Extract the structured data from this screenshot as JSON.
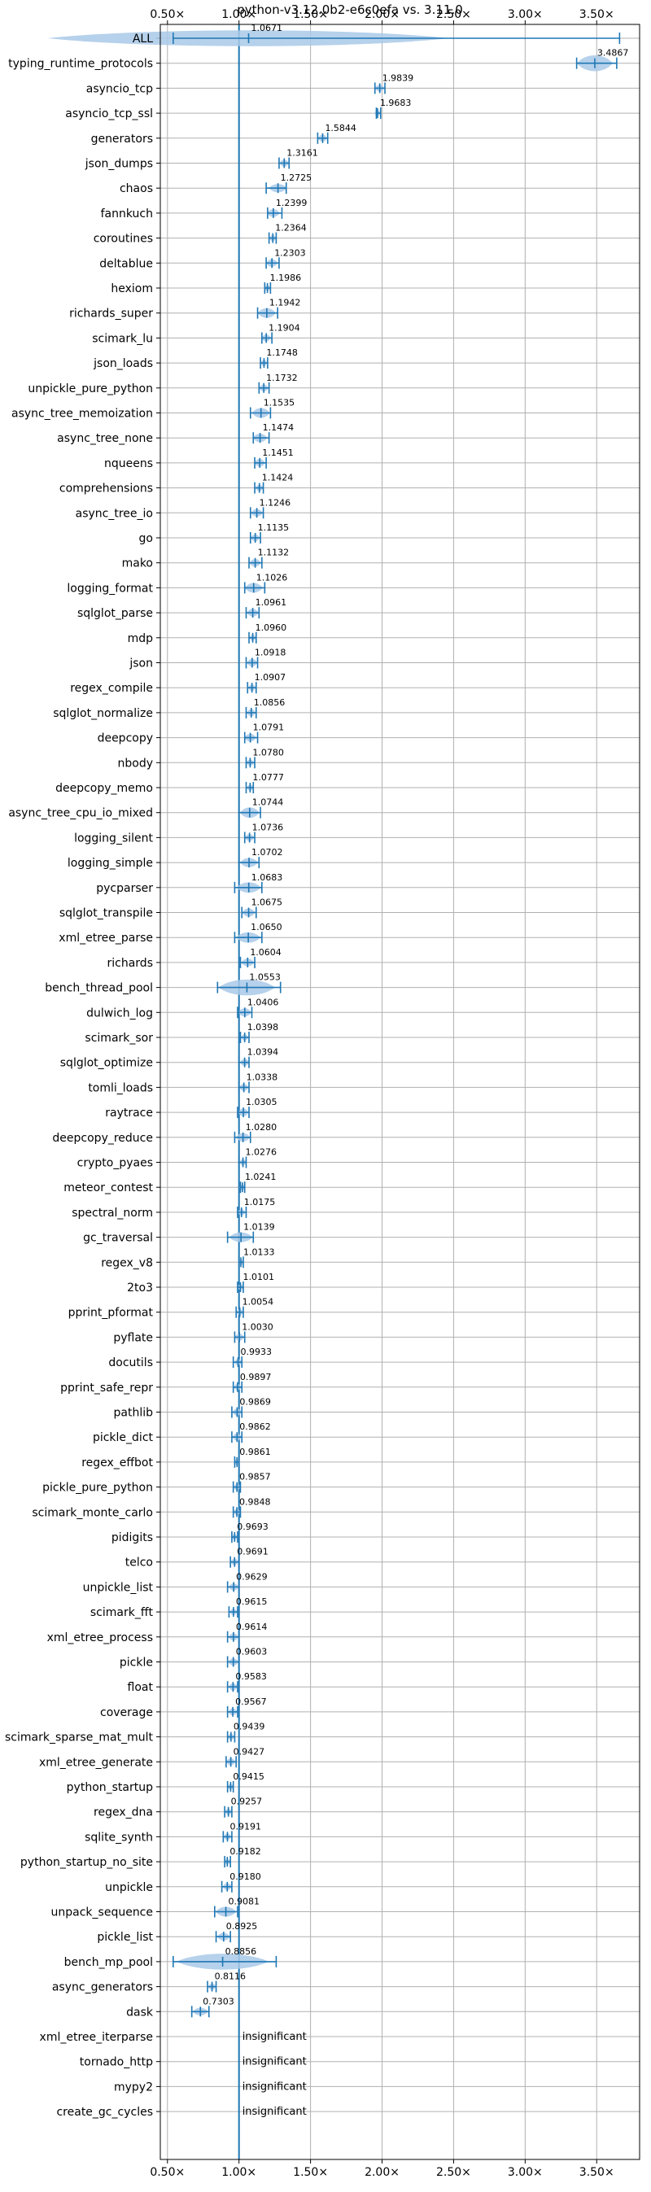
{
  "chart_data": {
    "type": "violin",
    "title": "python-v3.12.0b2-e6c0efa vs. 3.11.0",
    "xlabel": "",
    "ylabel": "",
    "xlim": [
      0.45,
      3.8
    ],
    "x_ticks": [
      0.5,
      1.0,
      1.5,
      2.0,
      2.5,
      3.0,
      3.5
    ],
    "x_tick_labels": [
      "0.50×",
      "1.00×",
      "1.50×",
      "2.00×",
      "2.50×",
      "3.00×",
      "3.50×"
    ],
    "reference_line": 1.0,
    "grid": true,
    "insignificant_label": "insignificant",
    "colors": {
      "accent": "#1f77b4",
      "violin": "#a9c9e8",
      "grid": "#b0b0b0"
    },
    "benchmarks": [
      {
        "name": "ALL",
        "value": 1.0671,
        "value_label": "1.0671",
        "low": 0.54,
        "high": 3.66,
        "spread": 0.34
      },
      {
        "name": "typing_runtime_protocols",
        "value": 3.4867,
        "value_label": "3.4867",
        "low": 3.36,
        "high": 3.64,
        "spread": 0.24
      },
      {
        "name": "asyncio_tcp",
        "value": 1.9839,
        "value_label": "1.9839",
        "low": 1.95,
        "high": 2.02,
        "spread": 0.05
      },
      {
        "name": "asyncio_tcp_ssl",
        "value": 1.9683,
        "value_label": "1.9683",
        "low": 1.96,
        "high": 1.99,
        "spread": 0.03
      },
      {
        "name": "generators",
        "value": 1.5844,
        "value_label": "1.5844",
        "low": 1.55,
        "high": 1.62,
        "spread": 0.05
      },
      {
        "name": "json_dumps",
        "value": 1.3161,
        "value_label": "1.3161",
        "low": 1.28,
        "high": 1.35,
        "spread": 0.05
      },
      {
        "name": "chaos",
        "value": 1.2725,
        "value_label": "1.2725",
        "low": 1.19,
        "high": 1.33,
        "spread": 0.07
      },
      {
        "name": "fannkuch",
        "value": 1.2399,
        "value_label": "1.2399",
        "low": 1.2,
        "high": 1.3,
        "spread": 0.06
      },
      {
        "name": "coroutines",
        "value": 1.2364,
        "value_label": "1.2364",
        "low": 1.21,
        "high": 1.26,
        "spread": 0.04
      },
      {
        "name": "deltablue",
        "value": 1.2303,
        "value_label": "1.2303",
        "low": 1.19,
        "high": 1.28,
        "spread": 0.06
      },
      {
        "name": "hexiom",
        "value": 1.1986,
        "value_label": "1.1986",
        "low": 1.18,
        "high": 1.22,
        "spread": 0.03
      },
      {
        "name": "richards_super",
        "value": 1.1942,
        "value_label": "1.1942",
        "low": 1.13,
        "high": 1.27,
        "spread": 0.09
      },
      {
        "name": "scimark_lu",
        "value": 1.1904,
        "value_label": "1.1904",
        "low": 1.16,
        "high": 1.23,
        "spread": 0.05
      },
      {
        "name": "json_loads",
        "value": 1.1748,
        "value_label": "1.1748",
        "low": 1.15,
        "high": 1.2,
        "spread": 0.04
      },
      {
        "name": "unpickle_pure_python",
        "value": 1.1732,
        "value_label": "1.1732",
        "low": 1.14,
        "high": 1.21,
        "spread": 0.05
      },
      {
        "name": "async_tree_memoization",
        "value": 1.1535,
        "value_label": "1.1535",
        "low": 1.08,
        "high": 1.22,
        "spread": 0.09
      },
      {
        "name": "async_tree_none",
        "value": 1.1474,
        "value_label": "1.1474",
        "low": 1.1,
        "high": 1.21,
        "spread": 0.07
      },
      {
        "name": "nqueens",
        "value": 1.1451,
        "value_label": "1.1451",
        "low": 1.11,
        "high": 1.19,
        "spread": 0.06
      },
      {
        "name": "comprehensions",
        "value": 1.1424,
        "value_label": "1.1424",
        "low": 1.11,
        "high": 1.17,
        "spread": 0.04
      },
      {
        "name": "async_tree_io",
        "value": 1.1246,
        "value_label": "1.1246",
        "low": 1.08,
        "high": 1.17,
        "spread": 0.06
      },
      {
        "name": "go",
        "value": 1.1135,
        "value_label": "1.1135",
        "low": 1.08,
        "high": 1.15,
        "spread": 0.05
      },
      {
        "name": "mako",
        "value": 1.1132,
        "value_label": "1.1132",
        "low": 1.07,
        "high": 1.16,
        "spread": 0.06
      },
      {
        "name": "logging_format",
        "value": 1.1026,
        "value_label": "1.1026",
        "low": 1.04,
        "high": 1.18,
        "spread": 0.09
      },
      {
        "name": "sqlglot_parse",
        "value": 1.0961,
        "value_label": "1.0961",
        "low": 1.05,
        "high": 1.14,
        "spread": 0.06
      },
      {
        "name": "mdp",
        "value": 1.096,
        "value_label": "1.0960",
        "low": 1.07,
        "high": 1.12,
        "spread": 0.04
      },
      {
        "name": "json",
        "value": 1.0918,
        "value_label": "1.0918",
        "low": 1.05,
        "high": 1.13,
        "spread": 0.06
      },
      {
        "name": "regex_compile",
        "value": 1.0907,
        "value_label": "1.0907",
        "low": 1.06,
        "high": 1.12,
        "spread": 0.04
      },
      {
        "name": "sqlglot_normalize",
        "value": 1.0856,
        "value_label": "1.0856",
        "low": 1.05,
        "high": 1.12,
        "spread": 0.05
      },
      {
        "name": "deepcopy",
        "value": 1.0791,
        "value_label": "1.0791",
        "low": 1.04,
        "high": 1.13,
        "spread": 0.06
      },
      {
        "name": "nbody",
        "value": 1.078,
        "value_label": "1.0780",
        "low": 1.05,
        "high": 1.11,
        "spread": 0.04
      },
      {
        "name": "deepcopy_memo",
        "value": 1.0777,
        "value_label": "1.0777",
        "low": 1.05,
        "high": 1.1,
        "spread": 0.04
      },
      {
        "name": "async_tree_cpu_io_mixed",
        "value": 1.0744,
        "value_label": "1.0744",
        "low": 1.0,
        "high": 1.15,
        "spread": 0.1
      },
      {
        "name": "logging_silent",
        "value": 1.0736,
        "value_label": "1.0736",
        "low": 1.04,
        "high": 1.11,
        "spread": 0.05
      },
      {
        "name": "logging_simple",
        "value": 1.0702,
        "value_label": "1.0702",
        "low": 1.0,
        "high": 1.14,
        "spread": 0.08
      },
      {
        "name": "pycparser",
        "value": 1.0683,
        "value_label": "1.0683",
        "low": 0.97,
        "high": 1.16,
        "spread": 0.1
      },
      {
        "name": "sqlglot_transpile",
        "value": 1.0675,
        "value_label": "1.0675",
        "low": 1.02,
        "high": 1.12,
        "spread": 0.07
      },
      {
        "name": "xml_etree_parse",
        "value": 1.065,
        "value_label": "1.0650",
        "low": 0.97,
        "high": 1.16,
        "spread": 0.1
      },
      {
        "name": "richards",
        "value": 1.0604,
        "value_label": "1.0604",
        "low": 1.01,
        "high": 1.11,
        "spread": 0.06
      },
      {
        "name": "bench_thread_pool",
        "value": 1.0553,
        "value_label": "1.0553",
        "low": 0.85,
        "high": 1.29,
        "spread": 0.22
      },
      {
        "name": "dulwich_log",
        "value": 1.0406,
        "value_label": "1.0406",
        "low": 0.99,
        "high": 1.09,
        "spread": 0.07
      },
      {
        "name": "scimark_sor",
        "value": 1.0398,
        "value_label": "1.0398",
        "low": 1.01,
        "high": 1.07,
        "spread": 0.04
      },
      {
        "name": "sqlglot_optimize",
        "value": 1.0394,
        "value_label": "1.0394",
        "low": 1.0,
        "high": 1.07,
        "spread": 0.05
      },
      {
        "name": "tomli_loads",
        "value": 1.0338,
        "value_label": "1.0338",
        "low": 1.0,
        "high": 1.07,
        "spread": 0.05
      },
      {
        "name": "raytrace",
        "value": 1.0305,
        "value_label": "1.0305",
        "low": 0.99,
        "high": 1.07,
        "spread": 0.06
      },
      {
        "name": "deepcopy_reduce",
        "value": 1.028,
        "value_label": "1.0280",
        "low": 0.97,
        "high": 1.08,
        "spread": 0.07
      },
      {
        "name": "crypto_pyaes",
        "value": 1.0276,
        "value_label": "1.0276",
        "low": 1.0,
        "high": 1.05,
        "spread": 0.04
      },
      {
        "name": "meteor_contest",
        "value": 1.0241,
        "value_label": "1.0241",
        "low": 1.01,
        "high": 1.04,
        "spread": 0.03
      },
      {
        "name": "spectral_norm",
        "value": 1.0175,
        "value_label": "1.0175",
        "low": 0.99,
        "high": 1.05,
        "spread": 0.04
      },
      {
        "name": "gc_traversal",
        "value": 1.0139,
        "value_label": "1.0139",
        "low": 0.92,
        "high": 1.1,
        "spread": 0.09
      },
      {
        "name": "regex_v8",
        "value": 1.0133,
        "value_label": "1.0133",
        "low": 1.0,
        "high": 1.03,
        "spread": 0.03
      },
      {
        "name": "2to3",
        "value": 1.0101,
        "value_label": "1.0101",
        "low": 0.99,
        "high": 1.03,
        "spread": 0.03
      },
      {
        "name": "pprint_pformat",
        "value": 1.0054,
        "value_label": "1.0054",
        "low": 0.98,
        "high": 1.03,
        "spread": 0.04
      },
      {
        "name": "pyflate",
        "value": 1.003,
        "value_label": "1.0030",
        "low": 0.97,
        "high": 1.04,
        "spread": 0.05
      },
      {
        "name": "docutils",
        "value": 0.9933,
        "value_label": "0.9933",
        "low": 0.96,
        "high": 1.02,
        "spread": 0.04
      },
      {
        "name": "pprint_safe_repr",
        "value": 0.9897,
        "value_label": "0.9897",
        "low": 0.96,
        "high": 1.02,
        "spread": 0.04
      },
      {
        "name": "pathlib",
        "value": 0.9869,
        "value_label": "0.9869",
        "low": 0.95,
        "high": 1.02,
        "spread": 0.05
      },
      {
        "name": "pickle_dict",
        "value": 0.9862,
        "value_label": "0.9862",
        "low": 0.95,
        "high": 1.02,
        "spread": 0.05
      },
      {
        "name": "regex_effbot",
        "value": 0.9861,
        "value_label": "0.9861",
        "low": 0.97,
        "high": 1.0,
        "spread": 0.03
      },
      {
        "name": "pickle_pure_python",
        "value": 0.9857,
        "value_label": "0.9857",
        "low": 0.96,
        "high": 1.01,
        "spread": 0.04
      },
      {
        "name": "scimark_monte_carlo",
        "value": 0.9848,
        "value_label": "0.9848",
        "low": 0.96,
        "high": 1.01,
        "spread": 0.04
      },
      {
        "name": "pidigits",
        "value": 0.9693,
        "value_label": "0.9693",
        "low": 0.95,
        "high": 0.99,
        "spread": 0.03
      },
      {
        "name": "telco",
        "value": 0.9691,
        "value_label": "0.9691",
        "low": 0.94,
        "high": 1.0,
        "spread": 0.04
      },
      {
        "name": "unpickle_list",
        "value": 0.9629,
        "value_label": "0.9629",
        "low": 0.92,
        "high": 1.0,
        "spread": 0.05
      },
      {
        "name": "scimark_fft",
        "value": 0.9615,
        "value_label": "0.9615",
        "low": 0.93,
        "high": 0.99,
        "spread": 0.04
      },
      {
        "name": "xml_etree_process",
        "value": 0.9614,
        "value_label": "0.9614",
        "low": 0.92,
        "high": 1.0,
        "spread": 0.05
      },
      {
        "name": "pickle",
        "value": 0.9603,
        "value_label": "0.9603",
        "low": 0.92,
        "high": 1.0,
        "spread": 0.05
      },
      {
        "name": "float",
        "value": 0.9583,
        "value_label": "0.9583",
        "low": 0.92,
        "high": 0.99,
        "spread": 0.05
      },
      {
        "name": "coverage",
        "value": 0.9567,
        "value_label": "0.9567",
        "low": 0.92,
        "high": 0.99,
        "spread": 0.05
      },
      {
        "name": "scimark_sparse_mat_mult",
        "value": 0.9439,
        "value_label": "0.9439",
        "low": 0.92,
        "high": 0.97,
        "spread": 0.04
      },
      {
        "name": "xml_etree_generate",
        "value": 0.9427,
        "value_label": "0.9427",
        "low": 0.91,
        "high": 0.98,
        "spread": 0.05
      },
      {
        "name": "python_startup",
        "value": 0.9415,
        "value_label": "0.9415",
        "low": 0.92,
        "high": 0.96,
        "spread": 0.03
      },
      {
        "name": "regex_dna",
        "value": 0.9257,
        "value_label": "0.9257",
        "low": 0.9,
        "high": 0.95,
        "spread": 0.04
      },
      {
        "name": "sqlite_synth",
        "value": 0.9191,
        "value_label": "0.9191",
        "low": 0.89,
        "high": 0.95,
        "spread": 0.04
      },
      {
        "name": "python_startup_no_site",
        "value": 0.9182,
        "value_label": "0.9182",
        "low": 0.9,
        "high": 0.94,
        "spread": 0.03
      },
      {
        "name": "unpickle",
        "value": 0.918,
        "value_label": "0.9180",
        "low": 0.88,
        "high": 0.95,
        "spread": 0.05
      },
      {
        "name": "unpack_sequence",
        "value": 0.9081,
        "value_label": "0.9081",
        "low": 0.83,
        "high": 0.99,
        "spread": 0.09
      },
      {
        "name": "pickle_list",
        "value": 0.8925,
        "value_label": "0.8925",
        "low": 0.84,
        "high": 0.94,
        "spread": 0.06
      },
      {
        "name": "bench_mp_pool",
        "value": 0.8856,
        "value_label": "0.8856",
        "low": 0.54,
        "high": 1.26,
        "spread": 0.34
      },
      {
        "name": "async_generators",
        "value": 0.8116,
        "value_label": "0.8116",
        "low": 0.78,
        "high": 0.84,
        "spread": 0.04
      },
      {
        "name": "dask",
        "value": 0.7303,
        "value_label": "0.7303",
        "low": 0.67,
        "high": 0.79,
        "spread": 0.06
      },
      {
        "name": "xml_etree_iterparse",
        "value": null,
        "value_label": "insignificant"
      },
      {
        "name": "tornado_http",
        "value": null,
        "value_label": "insignificant"
      },
      {
        "name": "mypy2",
        "value": null,
        "value_label": "insignificant"
      },
      {
        "name": "create_gc_cycles",
        "value": null,
        "value_label": "insignificant"
      }
    ]
  }
}
